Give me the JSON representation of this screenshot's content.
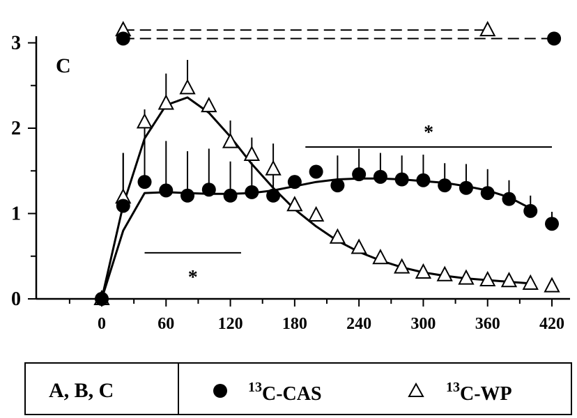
{
  "chart_data": {
    "type": "line",
    "panel_label": "C",
    "title": "",
    "xlabel": "",
    "ylabel": "",
    "x_range": [
      -40,
      420
    ],
    "y_range": [
      0,
      3
    ],
    "x_ticks": [
      0,
      60,
      120,
      180,
      240,
      300,
      360,
      420
    ],
    "y_ticks": [
      0,
      1,
      2,
      3
    ],
    "grid": false,
    "series": [
      {
        "name": "13C-CAS",
        "superscript": "13",
        "base": "C-CAS",
        "marker": "filled-circle",
        "color": "#000000",
        "x": [
          0,
          20,
          40,
          60,
          80,
          100,
          120,
          140,
          160,
          180,
          200,
          220,
          240,
          260,
          280,
          300,
          320,
          340,
          360,
          380,
          400,
          420
        ],
        "y": [
          0,
          1.09,
          1.37,
          1.27,
          1.21,
          1.28,
          1.21,
          1.25,
          1.21,
          1.37,
          1.49,
          1.33,
          1.46,
          1.43,
          1.4,
          1.39,
          1.33,
          1.3,
          1.24,
          1.17,
          1.03,
          0.88
        ],
        "err": [
          0,
          0.62,
          0.68,
          0.58,
          0.52,
          0.48,
          0.4,
          0.35,
          0.38,
          0,
          0,
          0.35,
          0.3,
          0.28,
          0.28,
          0.3,
          0.26,
          0.28,
          0.28,
          0.22,
          0.18,
          0.14
        ],
        "fit": [
          [
            0,
            0
          ],
          [
            20,
            0.8
          ],
          [
            40,
            1.24
          ],
          [
            60,
            1.25
          ],
          [
            80,
            1.24
          ],
          [
            100,
            1.23
          ],
          [
            120,
            1.23
          ],
          [
            140,
            1.24
          ],
          [
            160,
            1.27
          ],
          [
            180,
            1.32
          ],
          [
            200,
            1.37
          ],
          [
            220,
            1.4
          ],
          [
            240,
            1.41
          ],
          [
            260,
            1.41
          ],
          [
            280,
            1.4
          ],
          [
            300,
            1.38
          ],
          [
            320,
            1.36
          ],
          [
            340,
            1.32
          ],
          [
            360,
            1.27
          ],
          [
            380,
            1.19
          ],
          [
            400,
            1.06
          ]
        ]
      },
      {
        "name": "13C-WP",
        "superscript": "13",
        "base": "C-WP",
        "marker": "open-triangle",
        "color": "#000000",
        "x": [
          0,
          20,
          40,
          60,
          80,
          100,
          120,
          140,
          160,
          180,
          200,
          220,
          240,
          260,
          280,
          300,
          320,
          340,
          360,
          380,
          400,
          420
        ],
        "y": [
          0,
          1.19,
          2.07,
          2.29,
          2.47,
          2.26,
          1.84,
          1.69,
          1.52,
          1.1,
          0.98,
          0.72,
          0.6,
          0.48,
          0.37,
          0.31,
          0.28,
          0.24,
          0.22,
          0.21,
          0.18,
          0.15
        ],
        "err": [
          0,
          0.52,
          0.15,
          0.35,
          0.33,
          0.07,
          0.25,
          0.2,
          0.3,
          0,
          0,
          0.06,
          0.08,
          0.07,
          0.08,
          0.07,
          0.05,
          0.05,
          0.04,
          0.04,
          0.03,
          0
        ],
        "fit": [
          [
            0,
            0
          ],
          [
            20,
            1.1
          ],
          [
            40,
            1.88
          ],
          [
            60,
            2.27
          ],
          [
            80,
            2.36
          ],
          [
            100,
            2.18
          ],
          [
            120,
            1.9
          ],
          [
            140,
            1.58
          ],
          [
            160,
            1.3
          ],
          [
            180,
            1.05
          ],
          [
            200,
            0.85
          ],
          [
            220,
            0.68
          ],
          [
            240,
            0.55
          ],
          [
            260,
            0.45
          ],
          [
            280,
            0.37
          ],
          [
            300,
            0.31
          ],
          [
            320,
            0.27
          ],
          [
            340,
            0.24
          ],
          [
            360,
            0.22
          ],
          [
            380,
            0.2
          ],
          [
            400,
            0.18
          ]
        ]
      }
    ],
    "top_reference_lines": [
      {
        "marker": "open-triangle",
        "x": [
          20,
          360
        ],
        "y": [
          3.15,
          3.15
        ]
      },
      {
        "marker": "filled-circle",
        "x": [
          20,
          422
        ],
        "y": [
          3.05,
          3.05
        ]
      }
    ],
    "significance": [
      {
        "x_start": 40,
        "x_end": 130,
        "y": 0.54,
        "label": "*"
      },
      {
        "x_start": 190,
        "x_end": 420,
        "y": 1.78,
        "label": "*"
      }
    ]
  },
  "legend": {
    "group_label": "A, B, C",
    "entries": [
      {
        "superscript": "13",
        "label": "C-CAS",
        "marker": "filled-circle"
      },
      {
        "superscript": "13",
        "label": "C-WP",
        "marker": "open-triangle"
      }
    ]
  }
}
